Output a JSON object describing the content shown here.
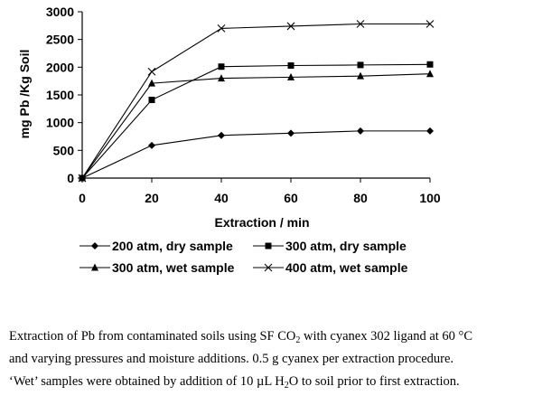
{
  "chart_data": {
    "type": "line",
    "title": "",
    "xlabel": "Extraction / min",
    "ylabel": "mg Pb /Kg Soil",
    "xlim": [
      0,
      100
    ],
    "ylim": [
      0,
      3000
    ],
    "x_ticks": [
      "0",
      "20",
      "40",
      "60",
      "80",
      "100"
    ],
    "y_ticks": [
      "0",
      "500",
      "1000",
      "1500",
      "2000",
      "2500",
      "3000"
    ],
    "x": [
      0,
      20,
      40,
      60,
      80,
      100
    ],
    "series": [
      {
        "name": "200 atm, dry sample",
        "marker": "diamond",
        "values": [
          0,
          590,
          770,
          810,
          850,
          850
        ]
      },
      {
        "name": "300 atm, dry sample",
        "marker": "square",
        "values": [
          0,
          1410,
          2010,
          2030,
          2040,
          2050
        ]
      },
      {
        "name": "300 atm, wet sample",
        "marker": "triangle",
        "values": [
          0,
          1710,
          1800,
          1820,
          1840,
          1880
        ]
      },
      {
        "name": "400 atm, wet sample",
        "marker": "x",
        "values": [
          0,
          1920,
          2700,
          2740,
          2780,
          2780
        ]
      }
    ],
    "grid": false,
    "legend_position": "bottom"
  },
  "caption": {
    "line1_a": "Extraction of Pb from contaminated soils using SF CO",
    "line1_sub": "2",
    "line1_b": " with cyanex 302 ligand at 60 °C",
    "line2": "and varying pressures and moisture additions. 0.5 g cyanex per extraction procedure.",
    "line3_a": "‘Wet’ samples were obtained by addition of 10 µL H",
    "line3_sub": "2",
    "line3_b": "O to soil prior to first extraction."
  },
  "colors": {
    "ink": "#000000",
    "background": "#ffffff"
  }
}
